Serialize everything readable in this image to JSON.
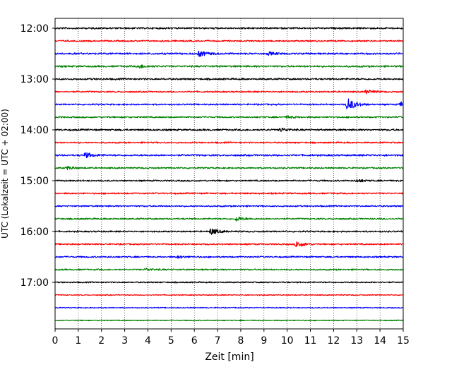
{
  "chart_data": {
    "type": "line",
    "title": "",
    "xlabel": "Zeit  [min]",
    "ylabel": "UTC (Lokalzeit = UTC + 02:00)",
    "xlim": [
      0,
      15
    ],
    "xticks": [
      0,
      1,
      2,
      3,
      4,
      5,
      6,
      7,
      8,
      9,
      10,
      11,
      12,
      13,
      14,
      15
    ],
    "xtick_labels": [
      "0",
      "1",
      "2",
      "3",
      "4",
      "5",
      "6",
      "7",
      "8",
      "9",
      "10",
      "11",
      "12",
      "13",
      "14",
      "15"
    ],
    "ytick_labels": [
      "12:00",
      "13:00",
      "14:00",
      "15:00",
      "16:00",
      "17:00"
    ],
    "ytick_rows": [
      0,
      4,
      8,
      12,
      16,
      20
    ],
    "vertical_grid": true,
    "grid_style": "dotted",
    "colors": [
      "#000000",
      "#ff0000",
      "#0000ff",
      "#008000"
    ],
    "rows": [
      {
        "start": "12:00",
        "color": "#000000",
        "amplitude": 0.35,
        "events": []
      },
      {
        "start": "12:15",
        "color": "#ff0000",
        "amplitude": 0.3,
        "events": []
      },
      {
        "start": "12:30",
        "color": "#0000ff",
        "amplitude": 0.35,
        "events": [
          {
            "t": 6.2,
            "amp": 1.2
          },
          {
            "t": 9.2,
            "amp": 0.6
          }
        ]
      },
      {
        "start": "12:45",
        "color": "#008000",
        "amplitude": 0.35,
        "events": [
          {
            "t": 3.6,
            "amp": 0.8
          }
        ]
      },
      {
        "start": "13:00",
        "color": "#000000",
        "amplitude": 0.35,
        "events": []
      },
      {
        "start": "13:15",
        "color": "#ff0000",
        "amplitude": 0.3,
        "events": [
          {
            "t": 13.4,
            "amp": 0.8
          }
        ]
      },
      {
        "start": "13:30",
        "color": "#0000ff",
        "amplitude": 0.3,
        "events": [
          {
            "t": 12.6,
            "amp": 3.0
          },
          {
            "t": 14.9,
            "amp": 1.2
          }
        ]
      },
      {
        "start": "13:45",
        "color": "#008000",
        "amplitude": 0.3,
        "events": [
          {
            "t": 10.0,
            "amp": 0.5
          }
        ]
      },
      {
        "start": "14:00",
        "color": "#000000",
        "amplitude": 0.35,
        "events": [
          {
            "t": 9.7,
            "amp": 0.8
          }
        ]
      },
      {
        "start": "14:15",
        "color": "#ff0000",
        "amplitude": 0.3,
        "events": []
      },
      {
        "start": "14:30",
        "color": "#0000ff",
        "amplitude": 0.35,
        "events": [
          {
            "t": 1.3,
            "amp": 1.1
          }
        ]
      },
      {
        "start": "14:45",
        "color": "#008000",
        "amplitude": 0.3,
        "events": [
          {
            "t": 0.5,
            "amp": 0.7
          }
        ]
      },
      {
        "start": "15:00",
        "color": "#000000",
        "amplitude": 0.3,
        "events": [
          {
            "t": 13.0,
            "amp": 0.6
          }
        ]
      },
      {
        "start": "15:15",
        "color": "#ff0000",
        "amplitude": 0.3,
        "events": []
      },
      {
        "start": "15:30",
        "color": "#0000ff",
        "amplitude": 0.3,
        "events": []
      },
      {
        "start": "15:45",
        "color": "#008000",
        "amplitude": 0.3,
        "events": [
          {
            "t": 7.8,
            "amp": 1.0
          }
        ]
      },
      {
        "start": "16:00",
        "color": "#000000",
        "amplitude": 0.3,
        "events": [
          {
            "t": 6.7,
            "amp": 1.4
          }
        ]
      },
      {
        "start": "16:15",
        "color": "#ff0000",
        "amplitude": 0.3,
        "events": [
          {
            "t": 10.4,
            "amp": 1.4
          }
        ]
      },
      {
        "start": "16:30",
        "color": "#0000ff",
        "amplitude": 0.3,
        "events": [
          {
            "t": 5.3,
            "amp": 0.5
          }
        ]
      },
      {
        "start": "16:45",
        "color": "#008000",
        "amplitude": 0.3,
        "events": [
          {
            "t": 3.9,
            "amp": 0.5
          }
        ]
      },
      {
        "start": "17:00",
        "color": "#000000",
        "amplitude": 0.25,
        "events": []
      },
      {
        "start": "17:15",
        "color": "#ff0000",
        "amplitude": 0.2,
        "events": []
      },
      {
        "start": "17:30",
        "color": "#0000ff",
        "amplitude": 0.2,
        "events": []
      },
      {
        "start": "17:45",
        "color": "#008000",
        "amplitude": 0.2,
        "events": []
      }
    ]
  }
}
